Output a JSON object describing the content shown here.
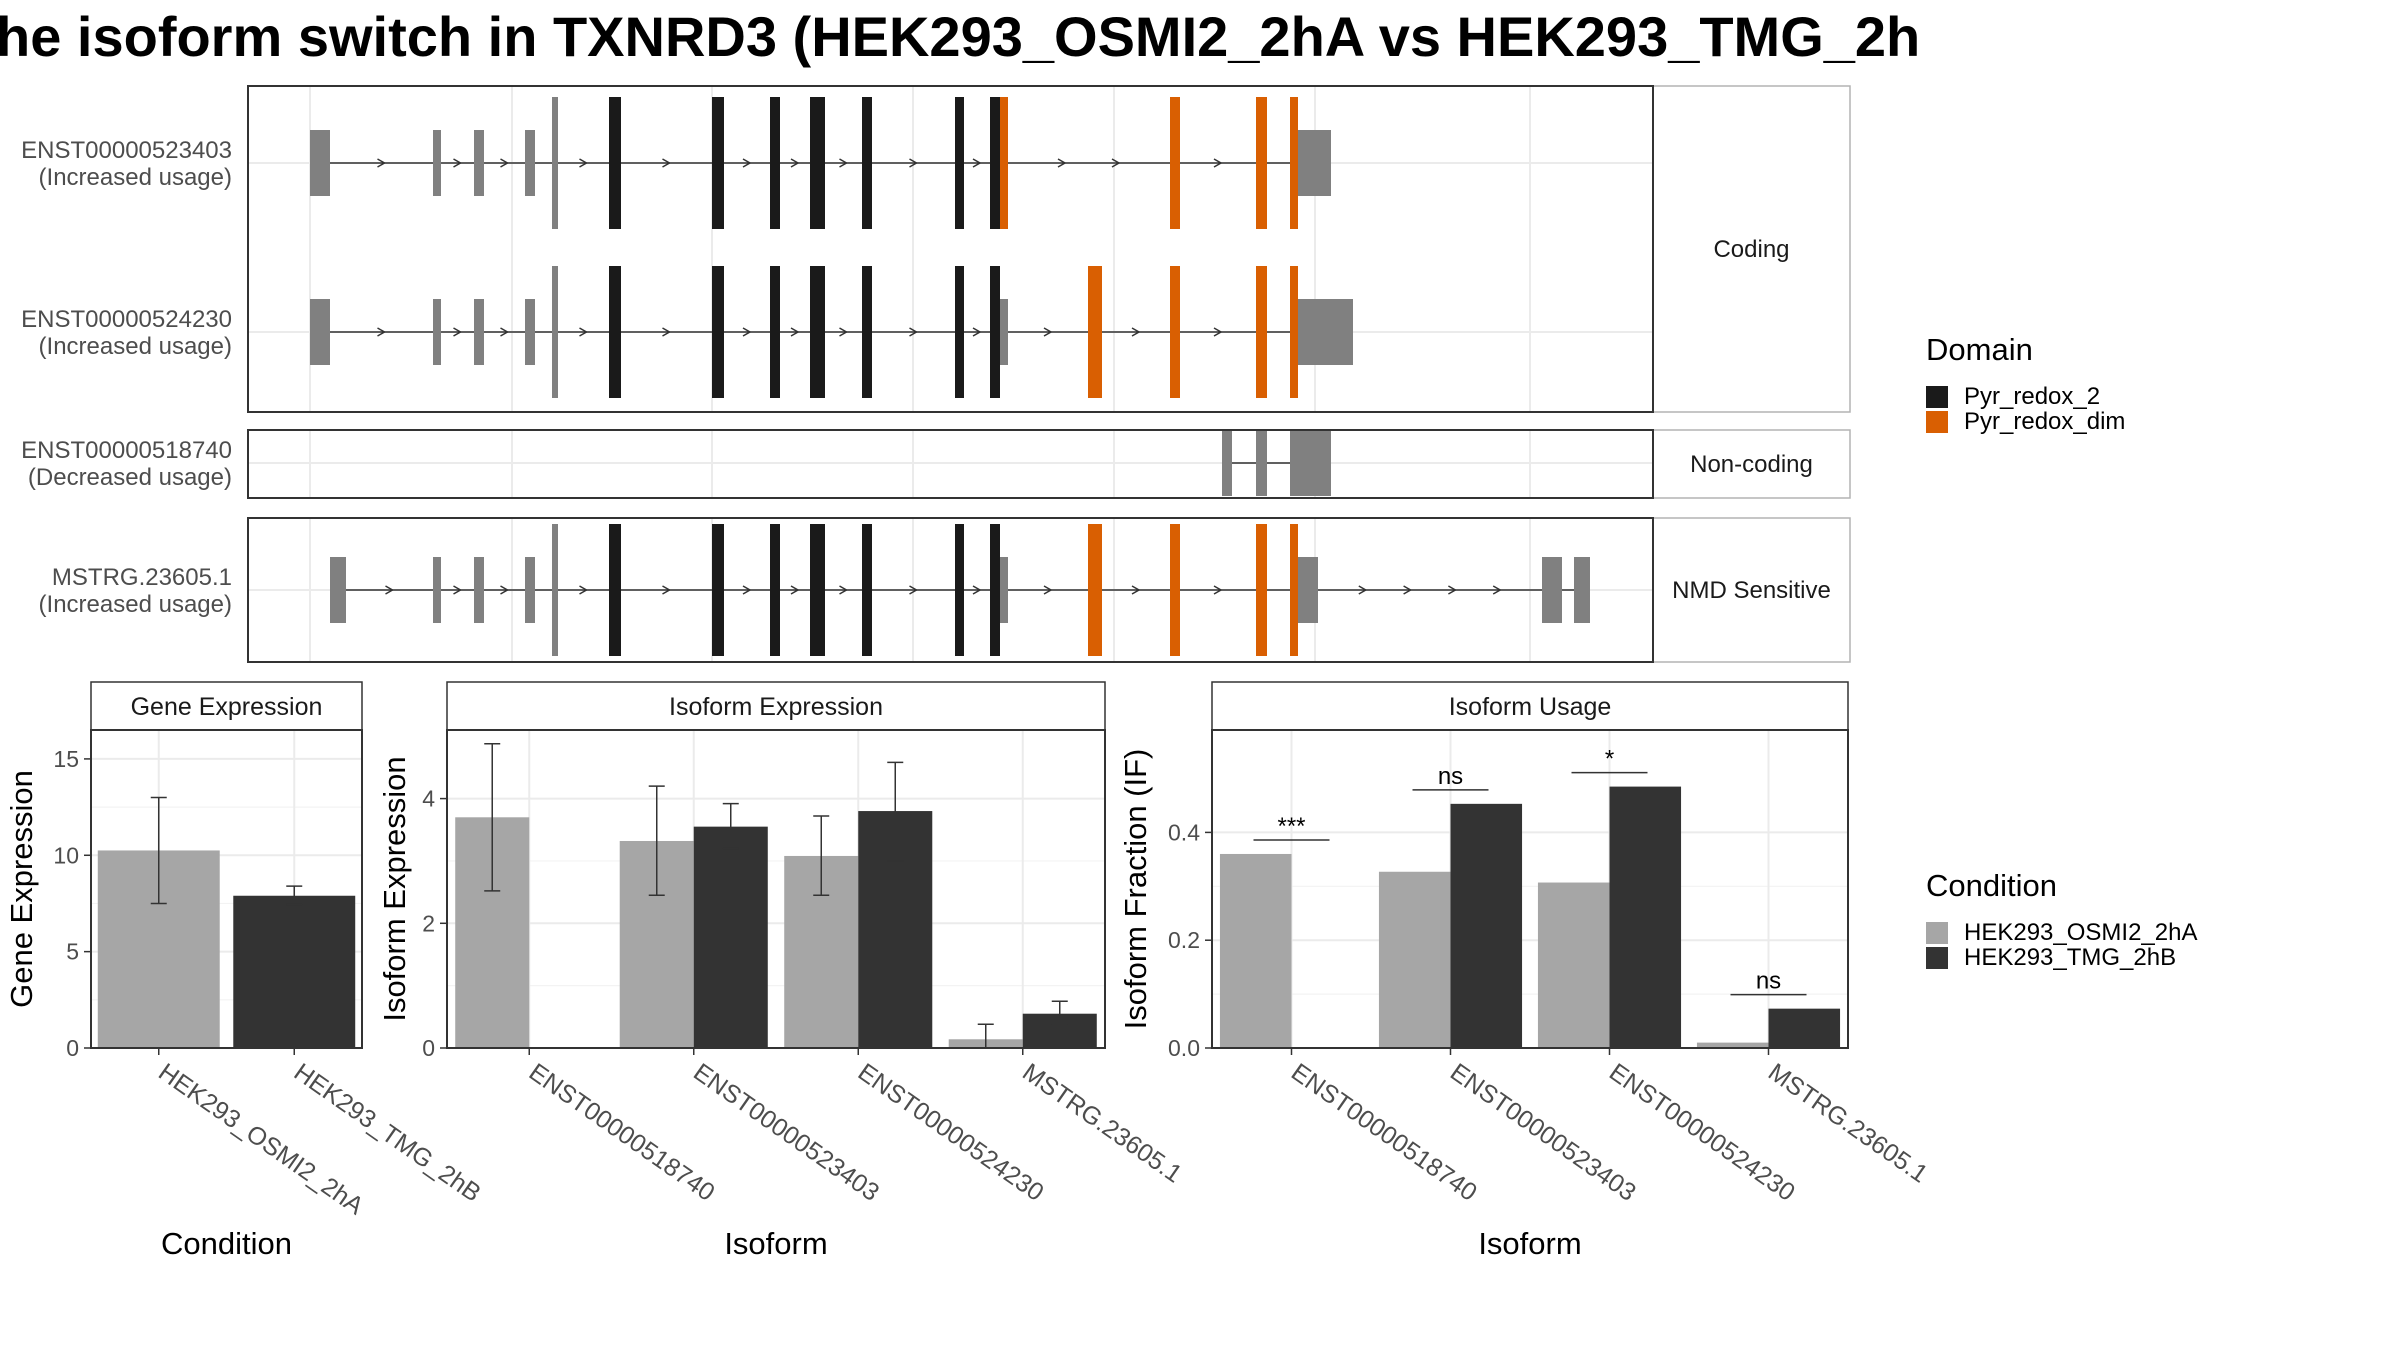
{
  "title": "he isoform switch in TXNRD3 (HEK293_OSMI2_2hA vs HEK293_TMG_2h",
  "transcript_panel": {
    "groups": [
      {
        "label": "Coding",
        "transcripts": [
          {
            "id": "ENST00000523403",
            "usage": "(Increased usage)"
          },
          {
            "id": "ENST00000524230",
            "usage": "(Increased usage)"
          }
        ]
      },
      {
        "label": "Non-coding",
        "transcripts": [
          {
            "id": "ENST00000518740",
            "usage": "(Decreased usage)"
          }
        ]
      },
      {
        "label": "NMD Sensitive",
        "transcripts": [
          {
            "id": "MSTRG.23605.1",
            "usage": "(Increased usage)"
          }
        ]
      }
    ]
  },
  "domain_legend": {
    "title": "Domain",
    "items": [
      {
        "label": "Pyr_redox_2",
        "color": "#1a1a1a"
      },
      {
        "label": "Pyr_redox_dim",
        "color": "#d95f02"
      }
    ]
  },
  "condition_legend": {
    "title": "Condition",
    "items": [
      {
        "label": "HEK293_OSMI2_2hA",
        "color": "#a6a6a6"
      },
      {
        "label": "HEK293_TMG_2hB",
        "color": "#333333"
      }
    ]
  },
  "chart_data": [
    {
      "type": "bar",
      "title": "Gene Expression",
      "xlabel": "Condition",
      "ylabel": "Gene Expression",
      "ylim": [
        0,
        16.5
      ],
      "yticks": [
        0,
        5,
        10,
        15
      ],
      "grid": true,
      "categories": [
        "HEK293_OSMI2_2hA",
        "HEK293_TMG_2hB"
      ],
      "values": [
        10.25,
        7.9
      ],
      "errors_low": [
        7.5,
        7.45
      ],
      "errors_high": [
        13.0,
        8.4
      ]
    },
    {
      "type": "bar",
      "title": "Isoform Expression",
      "xlabel": "Isoform",
      "ylabel": "Isoform Expression",
      "ylim": [
        0,
        5.1
      ],
      "yticks": [
        0,
        2,
        4
      ],
      "grid": true,
      "categories": [
        "ENST00000518740",
        "ENST00000523403",
        "ENST00000524230",
        "MSTRG.23605.1"
      ],
      "series": [
        {
          "name": "HEK293_OSMI2_2hA",
          "values": [
            3.7,
            3.32,
            3.08,
            0.14
          ],
          "errors_low": [
            2.52,
            2.45,
            2.45,
            0.0
          ],
          "errors_high": [
            4.88,
            4.2,
            3.72,
            0.38
          ]
        },
        {
          "name": "HEK293_TMG_2hB",
          "values": [
            0.0,
            3.55,
            3.8,
            0.55
          ],
          "errors_low": [
            0.0,
            3.2,
            3.0,
            0.38
          ],
          "errors_high": [
            0.0,
            3.92,
            4.58,
            0.75
          ]
        }
      ]
    },
    {
      "type": "bar",
      "title": "Isoform Usage",
      "xlabel": "Isoform",
      "ylabel": "Isoform Fraction (IF)",
      "ylim": [
        0,
        0.59
      ],
      "yticks": [
        0.0,
        0.2,
        0.4
      ],
      "ytick_labels": [
        "0.0",
        "0.2",
        "0.4"
      ],
      "grid": true,
      "categories": [
        "ENST00000518740",
        "ENST00000523403",
        "ENST00000524230",
        "MSTRG.23605.1"
      ],
      "series": [
        {
          "name": "HEK293_OSMI2_2hA",
          "values": [
            0.36,
            0.327,
            0.307,
            0.01
          ]
        },
        {
          "name": "HEK293_TMG_2hB",
          "values": [
            0.0,
            0.453,
            0.485,
            0.073
          ]
        }
      ],
      "significance": [
        "***",
        "ns",
        "*",
        "ns"
      ]
    }
  ]
}
